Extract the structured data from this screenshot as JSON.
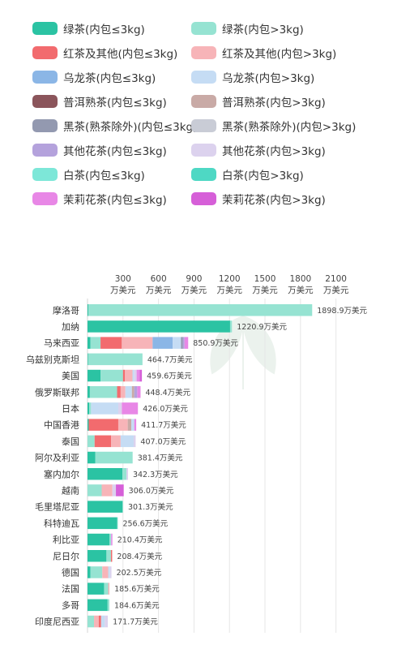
{
  "legend": [
    {
      "label": "绿茶(内包≤3kg)",
      "color": "#2bc3a3",
      "icon": "swatch"
    },
    {
      "label": "绿茶(内包>3kg)",
      "color": "#96e3d2",
      "icon": "swatch"
    },
    {
      "label": "红茶及其他(内包≤3kg)",
      "color": "#f26b6e",
      "icon": "swatch"
    },
    {
      "label": "红茶及其他(内包>3kg)",
      "color": "#f7b4b8",
      "icon": "swatch"
    },
    {
      "label": "乌龙茶(内包≤3kg)",
      "color": "#8bb6e6",
      "icon": "swatch"
    },
    {
      "label": "乌龙茶(内包>3kg)",
      "color": "#c5dcf4",
      "icon": "swatch"
    },
    {
      "label": "普洱熟茶(内包≤3kg)",
      "color": "#8b555b",
      "icon": "swatch"
    },
    {
      "label": "普洱熟茶(内包>3kg)",
      "color": "#c9aaa6",
      "icon": "swatch"
    },
    {
      "label": "黑茶(熟茶除外)(内包≤3kg)",
      "color": "#9399b0",
      "icon": "swatch"
    },
    {
      "label": "黑茶(熟茶除外)(内包>3kg)",
      "color": "#c9ccd6",
      "icon": "swatch"
    },
    {
      "label": "其他花茶(内包≤3kg)",
      "color": "#b4a2dc",
      "icon": "swatch"
    },
    {
      "label": "其他花茶(内包>3kg)",
      "color": "#dcd2ee",
      "icon": "swatch"
    },
    {
      "label": "白茶(内包≤3kg)",
      "color": "#7de7d8",
      "icon": "swatch"
    },
    {
      "label": "白茶(内包>3kg)",
      "color": "#4ed8c4",
      "icon": "swatch"
    },
    {
      "label": "茉莉花茶(内包≤3kg)",
      "color": "#e887e6",
      "icon": "swatch"
    },
    {
      "label": "茉莉花茶(内包>3kg)",
      "color": "#d65fd8",
      "icon": "swatch"
    }
  ],
  "watermark_icon": "leaf-logo-watermark",
  "chart_data": {
    "type": "bar",
    "orientation": "horizontal",
    "stacked": true,
    "title": "",
    "xlabel": "",
    "ylabel": "",
    "xlim": [
      0,
      2300
    ],
    "ticks": [
      {
        "value": 300,
        "line1": "300",
        "line2": "万美元"
      },
      {
        "value": 600,
        "line1": "600",
        "line2": "万美元"
      },
      {
        "value": 900,
        "line1": "900",
        "line2": "万美元"
      },
      {
        "value": 1200,
        "line1": "1200",
        "line2": "万美元"
      },
      {
        "value": 1500,
        "line1": "1500",
        "line2": "万美元"
      },
      {
        "value": 1800,
        "line1": "1800",
        "line2": "万美元"
      },
      {
        "value": 2100,
        "line1": "2100",
        "line2": "万美元"
      }
    ],
    "grid": true,
    "legend_position": "top",
    "series_names": [
      "绿茶(内包≤3kg)",
      "绿茶(内包>3kg)",
      "红茶及其他(内包≤3kg)",
      "红茶及其他(内包>3kg)",
      "乌龙茶(内包≤3kg)",
      "乌龙茶(内包>3kg)",
      "普洱熟茶(内包≤3kg)",
      "普洱熟茶(内包>3kg)",
      "黑茶(熟茶除外)(内包≤3kg)",
      "黑茶(熟茶除外)(内包>3kg)",
      "其他花茶(内包≤3kg)",
      "其他花茶(内包>3kg)",
      "白茶(内包≤3kg)",
      "白茶(内包>3kg)",
      "茉莉花茶(内包≤3kg)",
      "茉莉花茶(内包>3kg)"
    ],
    "categories": [
      {
        "name": "摩洛哥",
        "total": 1898.9,
        "total_label": "1898.9万美元",
        "segments": [
          [
            0,
            8
          ],
          [
            1,
            1890.9
          ]
        ]
      },
      {
        "name": "加纳",
        "total": 1220.9,
        "total_label": "1220.9万美元",
        "segments": [
          [
            0,
            1205
          ],
          [
            1,
            15.9
          ]
        ]
      },
      {
        "name": "马来西亚",
        "total": 850.9,
        "total_label": "850.9万美元",
        "segments": [
          [
            0,
            25
          ],
          [
            1,
            85
          ],
          [
            2,
            180
          ],
          [
            3,
            260
          ],
          [
            4,
            170
          ],
          [
            5,
            70
          ],
          [
            8,
            15
          ],
          [
            10,
            15
          ],
          [
            14,
            30.9
          ]
        ]
      },
      {
        "name": "乌兹别克斯坦",
        "total": 464.7,
        "total_label": "464.7万美元",
        "segments": [
          [
            0,
            5
          ],
          [
            1,
            459.7
          ]
        ]
      },
      {
        "name": "美国",
        "total": 459.6,
        "total_label": "459.6万美元",
        "segments": [
          [
            0,
            110
          ],
          [
            1,
            190
          ],
          [
            2,
            15
          ],
          [
            3,
            65
          ],
          [
            5,
            15
          ],
          [
            11,
            20
          ],
          [
            14,
            25
          ],
          [
            15,
            19.6
          ]
        ]
      },
      {
        "name": "俄罗斯联邦",
        "total": 448.4,
        "total_label": "448.4万美元",
        "segments": [
          [
            0,
            20
          ],
          [
            1,
            230
          ],
          [
            2,
            30
          ],
          [
            3,
            40
          ],
          [
            5,
            55
          ],
          [
            7,
            20
          ],
          [
            10,
            25
          ],
          [
            14,
            28.4
          ]
        ]
      },
      {
        "name": "日本",
        "total": 426.0,
        "total_label": "426.0万美元",
        "segments": [
          [
            0,
            15
          ],
          [
            1,
            15
          ],
          [
            5,
            230
          ],
          [
            11,
            30
          ],
          [
            14,
            136
          ]
        ]
      },
      {
        "name": "中国香港",
        "total": 411.7,
        "total_label": "411.7万美元",
        "segments": [
          [
            0,
            10
          ],
          [
            2,
            250
          ],
          [
            3,
            80
          ],
          [
            7,
            30
          ],
          [
            5,
            25
          ],
          [
            14,
            16.7
          ]
        ]
      },
      {
        "name": "泰国",
        "total": 407.0,
        "total_label": "407.0万美元",
        "segments": [
          [
            1,
            60
          ],
          [
            2,
            140
          ],
          [
            3,
            80
          ],
          [
            5,
            110
          ],
          [
            11,
            17
          ]
        ]
      },
      {
        "name": "阿尔及利亚",
        "total": 381.4,
        "total_label": "381.4万美元",
        "segments": [
          [
            0,
            65
          ],
          [
            1,
            316.4
          ]
        ]
      },
      {
        "name": "塞内加尔",
        "total": 342.3,
        "total_label": "342.3万美元",
        "segments": [
          [
            0,
            295
          ],
          [
            1,
            35
          ],
          [
            11,
            12.3
          ]
        ]
      },
      {
        "name": "越南",
        "total": 306.0,
        "total_label": "306.0万美元",
        "segments": [
          [
            1,
            120
          ],
          [
            3,
            90
          ],
          [
            11,
            30
          ],
          [
            15,
            66
          ]
        ]
      },
      {
        "name": "毛里塔尼亚",
        "total": 301.3,
        "total_label": "301.3万美元",
        "segments": [
          [
            0,
            296
          ],
          [
            1,
            5.3
          ]
        ]
      },
      {
        "name": "科特迪瓦",
        "total": 256.6,
        "total_label": "256.6万美元",
        "segments": [
          [
            0,
            250
          ],
          [
            1,
            6.6
          ]
        ]
      },
      {
        "name": "利比亚",
        "total": 210.4,
        "total_label": "210.4万美元",
        "segments": [
          [
            0,
            185
          ],
          [
            1,
            15
          ],
          [
            14,
            10.4
          ]
        ]
      },
      {
        "name": "尼日尔",
        "total": 208.4,
        "total_label": "208.4万美元",
        "segments": [
          [
            0,
            160
          ],
          [
            1,
            38
          ],
          [
            2,
            10.4
          ]
        ]
      },
      {
        "name": "德国",
        "total": 202.5,
        "total_label": "202.5万美元",
        "segments": [
          [
            0,
            25
          ],
          [
            1,
            100
          ],
          [
            3,
            50
          ],
          [
            5,
            15
          ],
          [
            11,
            12.5
          ]
        ]
      },
      {
        "name": "法国",
        "total": 185.6,
        "total_label": "185.6万美元",
        "segments": [
          [
            0,
            140
          ],
          [
            1,
            35
          ],
          [
            3,
            10.6
          ]
        ]
      },
      {
        "name": "多哥",
        "total": 184.6,
        "total_label": "184.6万美元",
        "segments": [
          [
            0,
            170
          ],
          [
            1,
            14.6
          ]
        ]
      },
      {
        "name": "印度尼西亚",
        "total": 171.7,
        "total_label": "171.7万美元",
        "segments": [
          [
            1,
            55
          ],
          [
            3,
            40
          ],
          [
            2,
            20
          ],
          [
            5,
            30
          ],
          [
            11,
            26.7
          ]
        ]
      }
    ]
  }
}
